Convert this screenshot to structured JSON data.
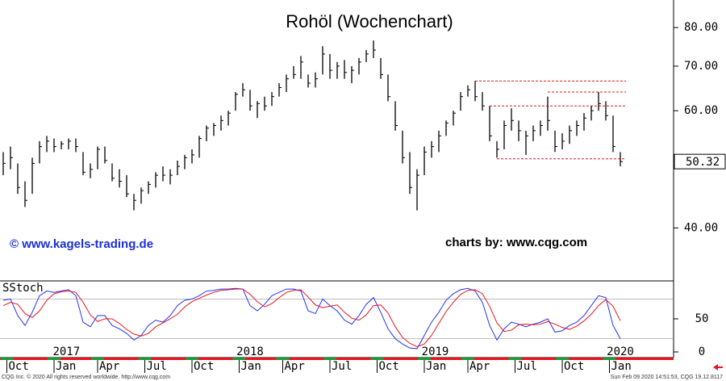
{
  "chart_data": [
    {
      "type": "ohlc",
      "title": "Rohöl (Wochenchart)",
      "annotations": [
        "© www.kagels-trading.de",
        "charts by: www.cqg.com"
      ],
      "log_scale": true,
      "color": "#000000",
      "ylim": [
        33.3,
        88
      ],
      "yticks": [
        {
          "value": 40,
          "label": "40.00"
        },
        {
          "value": 60,
          "label": "60.00"
        },
        {
          "value": 70,
          "label": "70.00"
        },
        {
          "value": 80,
          "label": "80.00"
        }
      ],
      "last_price": 50.32,
      "high": [
        52,
        53,
        50,
        47,
        51,
        54,
        55,
        54.5,
        54,
        54.5,
        54.5,
        52,
        50,
        53,
        53,
        50,
        49,
        48,
        45,
        46,
        47,
        48.5,
        49.5,
        49,
        50.5,
        51.5,
        52.5,
        55,
        57,
        57.5,
        59,
        60,
        64,
        66,
        64.5,
        62,
        63,
        64,
        66,
        68,
        70,
        72.5,
        68,
        68.5,
        75,
        73,
        71,
        71.5,
        70,
        72,
        74,
        76.5,
        72,
        68,
        62,
        56,
        52,
        49,
        53,
        54,
        56,
        58,
        60,
        64,
        65.5,
        66.5,
        64,
        61,
        54,
        58,
        60.5,
        58,
        56,
        57,
        58,
        63,
        56,
        55.5,
        57,
        58,
        59.5,
        61,
        64,
        62,
        59,
        52
      ],
      "low": [
        48,
        49,
        45,
        43,
        45,
        50,
        52,
        52,
        52.5,
        52.5,
        52,
        48,
        47.5,
        49,
        50,
        47,
        46,
        44.5,
        42.5,
        43.5,
        45,
        46,
        47,
        46.5,
        48,
        49,
        50,
        51,
        54,
        55,
        56,
        57,
        60,
        63,
        60,
        58.5,
        60,
        61,
        63,
        64,
        67,
        67,
        65,
        65,
        68,
        67,
        67,
        67,
        66,
        68,
        71,
        72,
        67,
        62,
        56,
        50,
        45,
        42.5,
        48,
        51,
        52,
        55,
        57,
        60,
        63,
        62,
        60,
        54,
        51,
        52.5,
        56,
        54,
        51.5,
        54,
        55,
        56,
        52,
        52.5,
        53.5,
        55,
        56,
        58,
        60,
        58,
        52,
        49.5
      ],
      "close": [
        50,
        51,
        46,
        44,
        50,
        53,
        54,
        53,
        53.5,
        54,
        53,
        48.5,
        49,
        52.5,
        50.5,
        47.5,
        47,
        45,
        44,
        45.5,
        46.5,
        48,
        48,
        48,
        49.5,
        51,
        51.5,
        54.5,
        56.5,
        57,
        58,
        59.5,
        63.5,
        64.5,
        61,
        61.5,
        61,
        63,
        65,
        67,
        68,
        71,
        66,
        67,
        73,
        69,
        70,
        68.5,
        69,
        71,
        73,
        74,
        68,
        63,
        57,
        51,
        46,
        48,
        52,
        53,
        55,
        57.5,
        59.5,
        63,
        64.5,
        63,
        61,
        55,
        52.5,
        57,
        58,
        56,
        55,
        56,
        57,
        58,
        53,
        54,
        56,
        57,
        58.5,
        60,
        61.5,
        59,
        53,
        50.32
      ],
      "levels": [
        {
          "value": 66.5,
          "from": 65
        },
        {
          "value": 64,
          "from": 75
        },
        {
          "value": 61,
          "from": 67
        },
        {
          "value": 50.8,
          "from": 68
        }
      ],
      "level_color": "#e8141e"
    },
    {
      "type": "line",
      "title": "SStoch",
      "ylim": [
        -7.3,
        107.3
      ],
      "yticks": [
        0,
        50
      ],
      "ylines": [
        80,
        20
      ],
      "series": [
        {
          "color": "#2233ee",
          "values": [
            78,
            80,
            55,
            40,
            60,
            85,
            92,
            90,
            92,
            94,
            85,
            45,
            38,
            55,
            55,
            40,
            35,
            28,
            18,
            25,
            40,
            48,
            45,
            55,
            70,
            78,
            80,
            85,
            92,
            93,
            95,
            95,
            96,
            95,
            70,
            62,
            72,
            85,
            90,
            95,
            95,
            92,
            62,
            58,
            80,
            70,
            62,
            48,
            42,
            55,
            72,
            82,
            60,
            35,
            20,
            12,
            6,
            5,
            25,
            45,
            60,
            78,
            88,
            94,
            96,
            92,
            75,
            40,
            18,
            35,
            45,
            42,
            38,
            42,
            45,
            50,
            30,
            32,
            40,
            45,
            55,
            70,
            85,
            82,
            40,
            20
          ]
        },
        {
          "color": "#e8141e",
          "values": [
            70,
            75,
            72,
            58,
            52,
            62,
            78,
            88,
            91,
            92,
            90,
            75,
            56,
            46,
            50,
            50,
            43,
            34,
            27,
            24,
            28,
            38,
            44,
            50,
            57,
            68,
            76,
            81,
            86,
            90,
            93,
            94,
            95,
            95,
            87,
            76,
            68,
            73,
            82,
            90,
            93,
            94,
            83,
            71,
            67,
            69,
            71,
            60,
            51,
            48,
            56,
            70,
            71,
            59,
            38,
            22,
            13,
            8,
            12,
            25,
            43,
            61,
            75,
            87,
            93,
            94,
            88,
            69,
            44,
            31,
            33,
            41,
            42,
            41,
            42,
            46,
            42,
            37,
            34,
            39,
            47,
            57,
            70,
            79,
            69,
            47
          ]
        }
      ],
      "xticks": [
        {
          "value": 0.5,
          "label": "Oct"
        },
        {
          "value": 7,
          "label": "Jan"
        },
        {
          "value": 13,
          "label": "Apr"
        },
        {
          "value": 19.5,
          "label": "Jul"
        },
        {
          "value": 26,
          "label": "Oct"
        },
        {
          "value": 32.5,
          "label": "Jan"
        },
        {
          "value": 38.5,
          "label": "Apr"
        },
        {
          "value": 45,
          "label": "Jul"
        },
        {
          "value": 51.5,
          "label": "Oct"
        },
        {
          "value": 58,
          "label": "Jan"
        },
        {
          "value": 64,
          "label": "Apr"
        },
        {
          "value": 70.5,
          "label": "Jul"
        },
        {
          "value": 77,
          "label": "Oct"
        },
        {
          "value": 83.5,
          "label": "Jan"
        }
      ],
      "year_ticks": [
        {
          "value": 8.7,
          "label": "2017"
        },
        {
          "value": 34,
          "label": "2018"
        },
        {
          "value": 59.5,
          "label": "2019"
        },
        {
          "value": 85,
          "label": "2020"
        }
      ]
    }
  ],
  "footer": {
    "left": "CQG Inc. © 2020 All rights reserved worldwide. http://www.cqg.com",
    "right": "Sun Feb 09 2020 14:51:53, CQG 19.12.8117"
  }
}
